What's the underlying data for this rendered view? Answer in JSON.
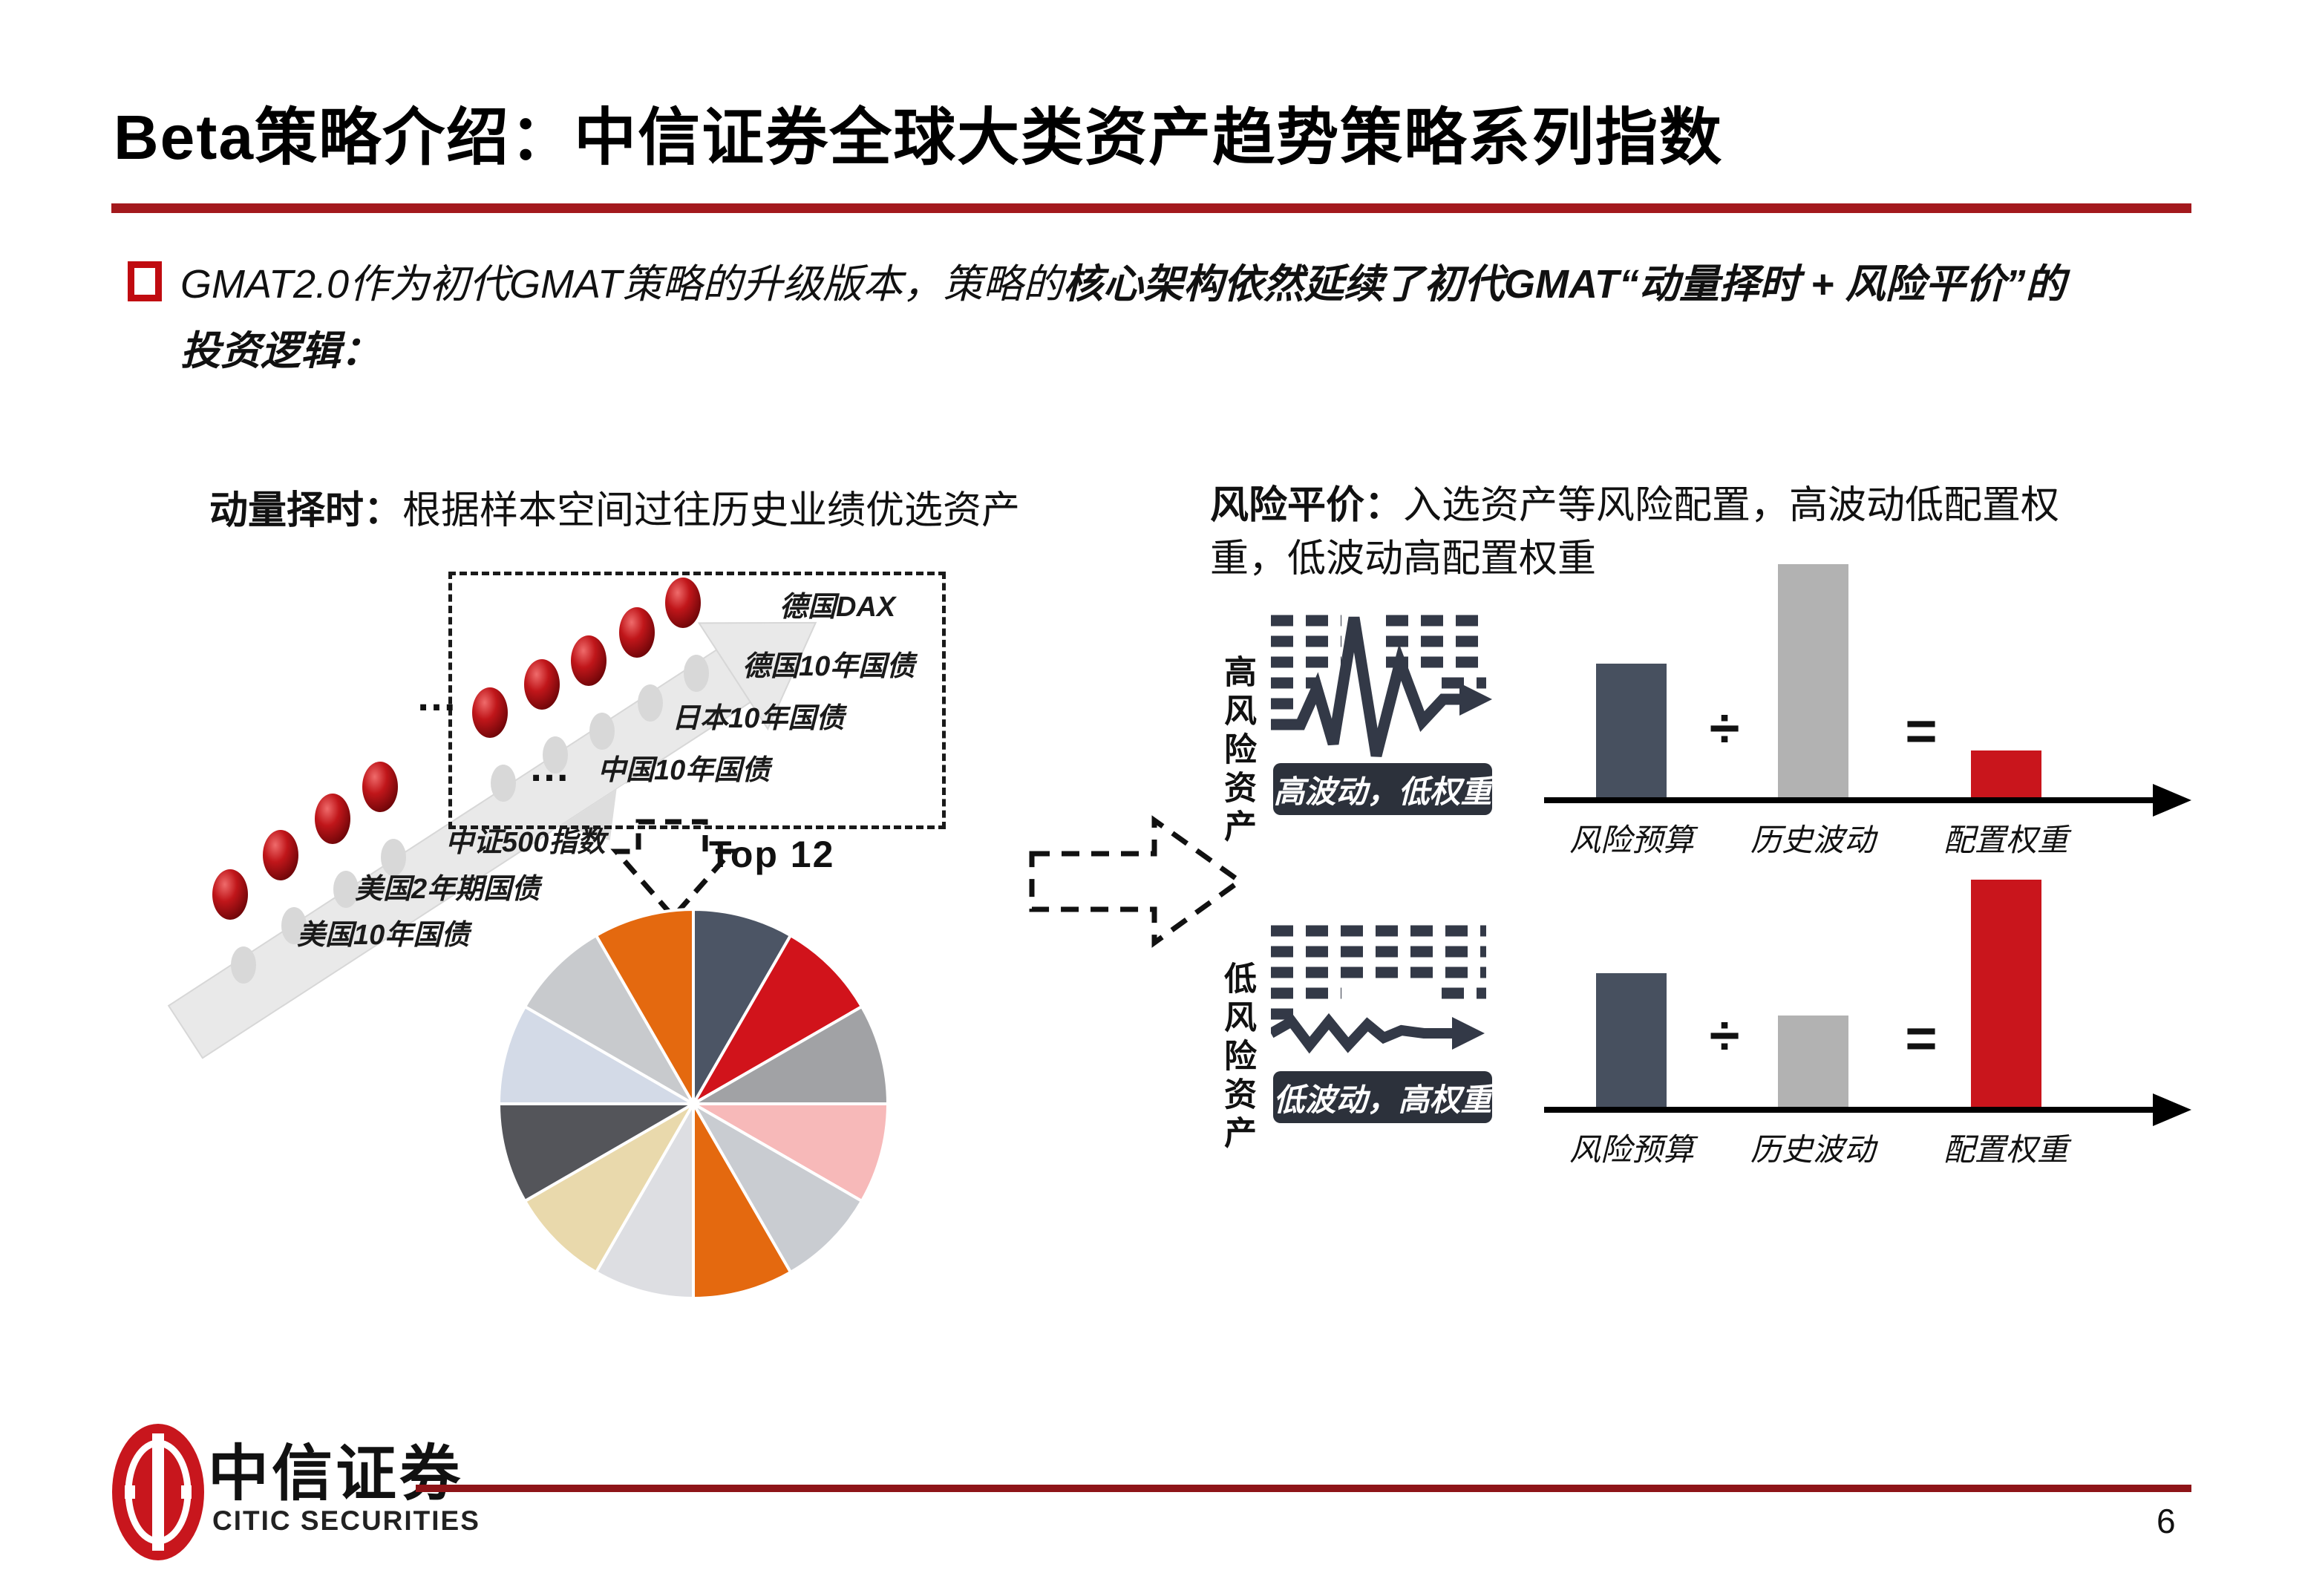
{
  "title": "Beta策略介绍：中信证券全球大类资产趋势策略系列指数",
  "bullet": {
    "lead": "GMAT2.0作为初代GMAT策略的升级版本，策略的",
    "emphasis": "核心架构依然延续了初代GMAT“动量择时 + 风险平价”的",
    "line2": "投资逻辑："
  },
  "momentum": {
    "heading_lead": "动量择时：",
    "heading_rest": "根据样本空间过往历史业绩优选资产",
    "labels": [
      "德国DAX",
      "德国10年国债",
      "日本10年国债",
      "中国10年国债",
      "中证500指数",
      "美国2年期国债",
      "美国10年国债"
    ],
    "ellipsis1": "…",
    "ellipsis2": "…",
    "top_label": "Top 12"
  },
  "risk": {
    "heading_lead": "风险平价：",
    "heading_line1": "入选资产等风险配置，高波动低配置权",
    "heading_line2": "重，低波动高配置权重",
    "high": {
      "side": "高风险资产",
      "tag": "高波动，低权重",
      "op_div": "÷",
      "op_eq": "=",
      "labels": [
        "风险预算",
        "历史波动",
        "配置权重"
      ]
    },
    "low": {
      "side": "低风险资产",
      "tag": "低波动，高权重",
      "op_div": "÷",
      "op_eq": "=",
      "labels": [
        "风险预算",
        "历史波动",
        "配置权重"
      ]
    }
  },
  "footer": {
    "logo_cn": "中信证券",
    "logo_en": "CITIC SECURITIES",
    "page": "6"
  },
  "colors": {
    "title_rule": "#a3191d",
    "footer_rule": "#8e1418",
    "bullet_red": "#c00b10",
    "bar_slate": "#47505f",
    "bar_gray": "#b2b2b2",
    "bar_red": "#c9151c",
    "icon_dark": "#333947",
    "arrow_gray": "#e9e9e9",
    "dot_red": "#b01015"
  },
  "chart_data": [
    {
      "type": "pie",
      "title": "Top 12",
      "note": "12 equal slices, no labels shown",
      "values": [
        1,
        1,
        1,
        1,
        1,
        1,
        1,
        1,
        1,
        1,
        1,
        1
      ],
      "colors": [
        "#4c5565",
        "#d1131b",
        "#a1a2a5",
        "#f7b9b9",
        "#c9ccd1",
        "#e4690f",
        "#dddee2",
        "#e9d9ac",
        "#54555a",
        "#d3dae7",
        "#c8cacd",
        "#e4690f"
      ]
    },
    {
      "type": "bar",
      "title": "高风险资产：风险预算 ÷ 历史波动 = 配置权重",
      "categories": [
        "风险预算",
        "历史波动",
        "配置权重"
      ],
      "values": [
        0.58,
        1.0,
        0.21
      ],
      "ylim": [
        0,
        1
      ],
      "colors": [
        "#47505f",
        "#b2b2b2",
        "#c9151c"
      ]
    },
    {
      "type": "bar",
      "title": "低风险资产：风险预算 ÷ 历史波动 = 配置权重",
      "categories": [
        "风险预算",
        "历史波动",
        "配置权重"
      ],
      "values": [
        0.58,
        0.4,
        0.975
      ],
      "ylim": [
        0,
        1
      ],
      "colors": [
        "#47505f",
        "#b2b2b2",
        "#c9151c"
      ]
    }
  ]
}
